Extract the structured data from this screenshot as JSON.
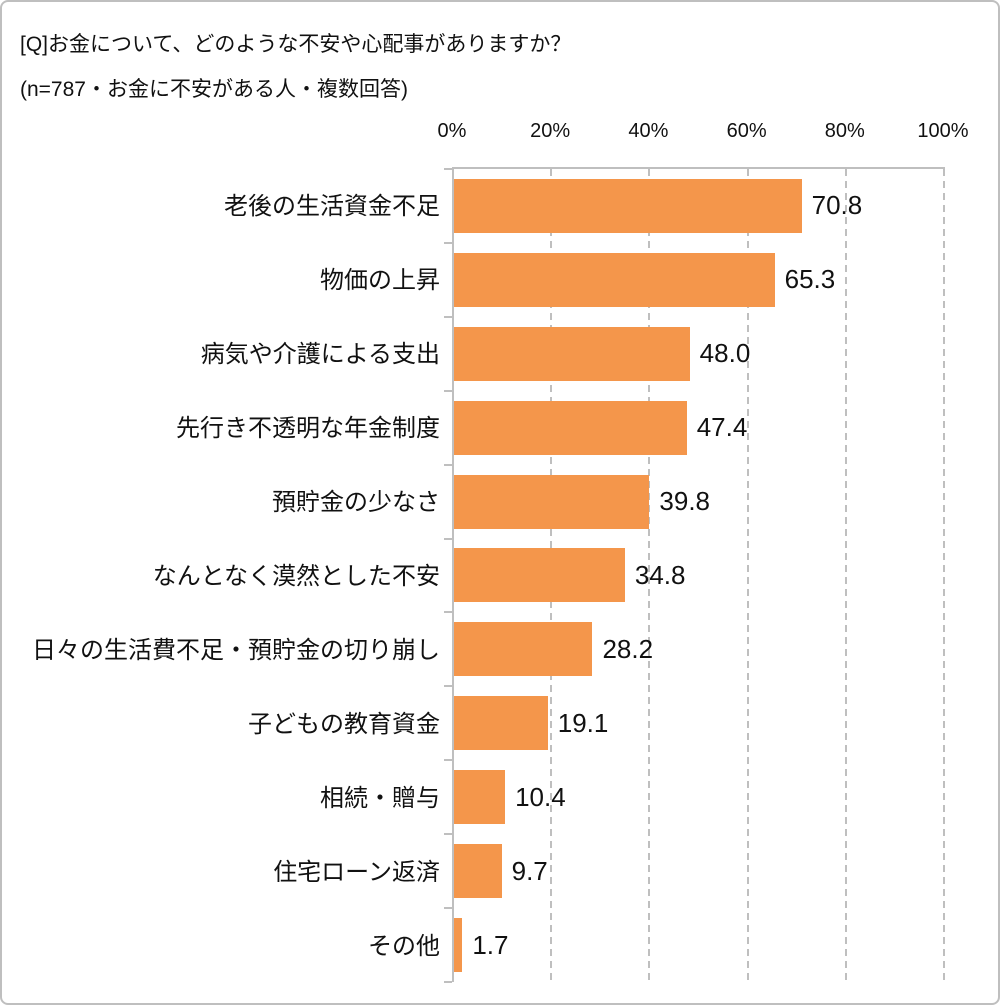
{
  "title": {
    "line1": "[Q]お金について、どのような不安や心配事がありますか？",
    "line2": "(n=787・お金に不安がある人・複数回答)"
  },
  "chart_data": {
    "type": "bar",
    "orientation": "horizontal",
    "title": "[Q]お金について、どのような不安や心配事がありますか？",
    "subtitle": "(n=787・お金に不安がある人・複数回答)",
    "categories": [
      "老後の生活資金不足",
      "物価の上昇",
      "病気や介護による支出",
      "先行き不透明な年金制度",
      "預貯金の少なさ",
      "なんとなく漠然とした不安",
      "日々の生活費不足・預貯金の切り崩し",
      "子どもの教育資金",
      "相続・贈与",
      "住宅ローン返済",
      "その他"
    ],
    "values": [
      70.8,
      65.3,
      48.0,
      47.4,
      39.8,
      34.8,
      28.2,
      19.1,
      10.4,
      9.7,
      1.7
    ],
    "value_labels": [
      "70.8",
      "65.3",
      "48.0",
      "47.4",
      "39.8",
      "34.8",
      "28.2",
      "19.1",
      "10.4",
      "9.7",
      "1.7"
    ],
    "x_axis": {
      "position": "top",
      "ticks": [
        "0%",
        "20%",
        "40%",
        "60%",
        "80%",
        "100%"
      ],
      "min": 0,
      "max": 100
    },
    "grid": "dashed-vertical",
    "legend": "none",
    "colors": {
      "bar": "#f4964b",
      "grid": "#bfbfbf",
      "axis": "#bfbfbf",
      "text": "#111111",
      "frame_border": "#bfbfbf",
      "background": "#ffffff"
    }
  }
}
